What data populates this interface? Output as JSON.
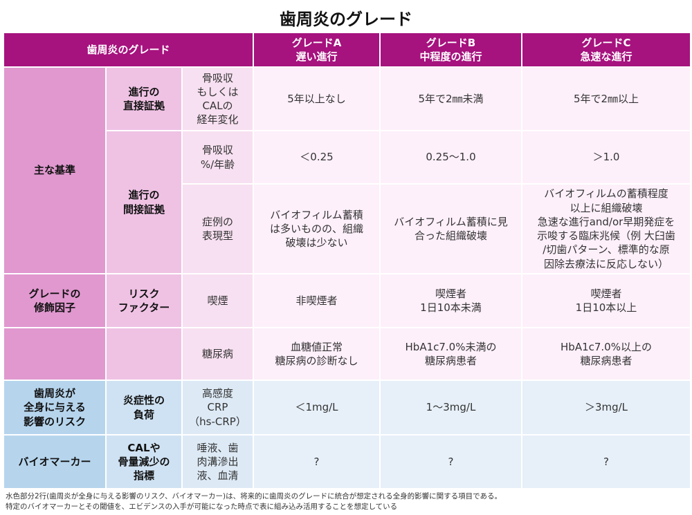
{
  "title": "歯周炎のグレード",
  "header": {
    "col_label": "歯周炎のグレード",
    "grade_a": "グレードA\n遅い進行",
    "grade_b": "グレードB\n中程度の進行",
    "grade_c": "グレードC\n急速な進行"
  },
  "rows": {
    "main_criteria": "主な基準",
    "direct_evidence": "進行の\n直接証拠",
    "indirect_evidence": "進行の\n間接証拠",
    "r1": {
      "measure": "骨吸収\nもしくは\nCALの\n経年変化",
      "a": "5年以上なし",
      "b": "5年で2㎜未満",
      "c": "5年で2㎜以上"
    },
    "r2": {
      "measure": "骨吸収\n%/年齢",
      "a": "＜0.25",
      "b": "0.25〜1.0",
      "c": "＞1.0"
    },
    "r3": {
      "measure": "症例の\n表現型",
      "a": "バイオフィルム蓄積\nは多いものの、組織\n破壊は少ない",
      "b": "バイオフィルム蓄積に見\n合った組織破壊",
      "c": "バイオフィルムの蓄積程度\n以上に組織破壊\n急速な進行and/or早期発症を\n示唆する臨床兆候（例 大臼歯\n/切歯パターン、標準的な原\n因除去療法に反応しない）"
    },
    "modifiers": "グレードの\n修飾因子",
    "risk_factor": "リスク\nファクター",
    "r4": {
      "measure": "喫煙",
      "a": "非喫煙者",
      "b": "喫煙者\n1日10本未満",
      "c": "喫煙者\n1日10本以上"
    },
    "r5": {
      "measure": "糖尿病",
      "a": "血糖値正常\n糖尿病の診断なし",
      "b": "HbA1c7.0%未満の\n糖尿病患者",
      "c": "HbA1c7.0%以上の\n糖尿病患者"
    },
    "systemic_risk": "歯周炎が\n全身に与える\n影響のリスク",
    "inflammatory_burden": "炎症性の\n負荷",
    "r6": {
      "measure": "高感度\nCRP\n（hs-CRP）",
      "a": "＜1mg/L",
      "b": "1〜3mg/L",
      "c": "＞3mg/L"
    },
    "biomarker": "バイオマーカー",
    "cal_indicator": "CALや\n骨量減少の\n指標",
    "r7": {
      "measure": "唾液、歯\n肉溝滲出\n液、血清",
      "a": "?",
      "b": "?",
      "c": "?"
    }
  },
  "footnote": {
    "line1": "水色部分2行(歯周炎が全身に与える影響のリスク、バイオマーカー)は、将来的に歯周炎のグレードに統合が想定される全身的影響に関する項目である。",
    "line2": "特定のバイオマーカーとその閾値を、エビデンスの入手が可能になった時点で表に組み込み活用することを想定している"
  },
  "colors": {
    "header": "#a6127e",
    "pink_dark": "#e098cf",
    "pink_mid": "#efc2e4",
    "pink_light": "#f7e0f1",
    "pink_data": "#fdf0fa",
    "blue_dark": "#b6d5ed",
    "blue_mid": "#cfe2f3",
    "blue_light": "#ddeaf6",
    "blue_data": "#e7f0f9"
  }
}
